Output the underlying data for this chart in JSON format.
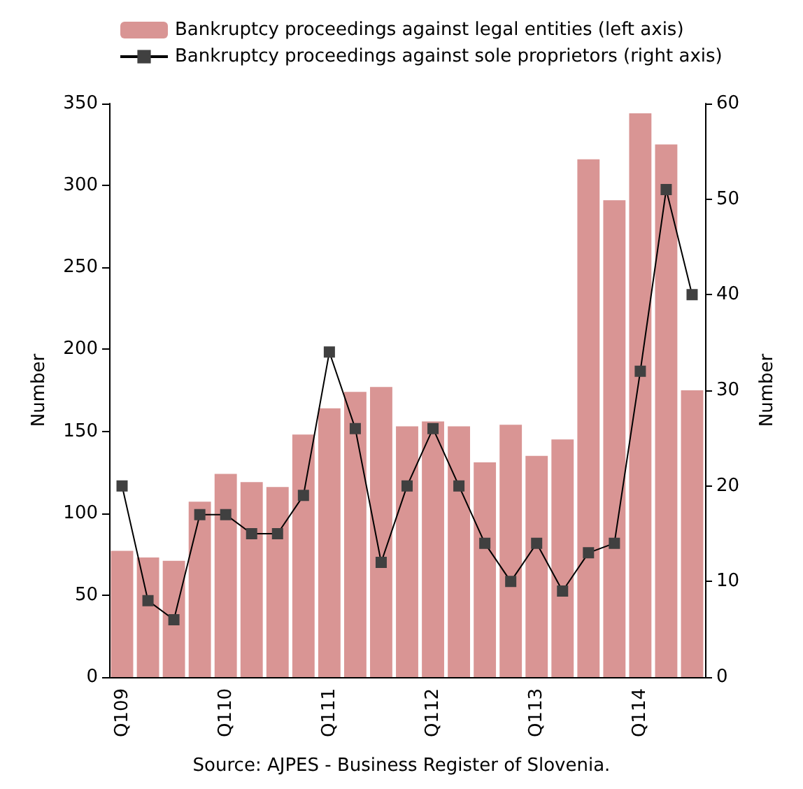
{
  "chart_data": {
    "type": "bar",
    "categories": [
      "Q109",
      null,
      null,
      null,
      "Q110",
      null,
      null,
      null,
      "Q111",
      null,
      null,
      null,
      "Q112",
      null,
      null,
      null,
      "Q113",
      null,
      null,
      null,
      "Q114",
      null,
      null
    ],
    "series": [
      {
        "name": "Bankruptcy proceedings against legal entities (left axis)",
        "color": "#d99594",
        "values": [
          77,
          73,
          71,
          107,
          124,
          119,
          116,
          148,
          164,
          174,
          177,
          153,
          156,
          153,
          131,
          154,
          135,
          145,
          316,
          291,
          344,
          325,
          175
        ]
      },
      {
        "name": "Bankruptcy proceedings against sole proprietors (right axis)",
        "type": "line",
        "axis": "y2",
        "color": "#000000",
        "values": [
          20,
          8,
          6,
          17,
          17,
          15,
          15,
          19,
          34,
          26,
          12,
          20,
          26,
          20,
          14,
          10,
          14,
          9,
          13,
          14,
          32,
          51,
          40
        ]
      }
    ],
    "ylabel": "Number",
    "y2label": "Number",
    "ylim": [
      0,
      350
    ],
    "yticks": [
      0,
      50,
      100,
      150,
      200,
      250,
      300,
      350
    ],
    "y2lim": [
      0,
      60
    ],
    "y2ticks": [
      0,
      10,
      20,
      30,
      40,
      50,
      60
    ],
    "marker": "square",
    "line_style": "solid",
    "legend": "top",
    "grid": false,
    "annotations": [
      "Source: AJPES - Business Register of Slovenia."
    ]
  }
}
